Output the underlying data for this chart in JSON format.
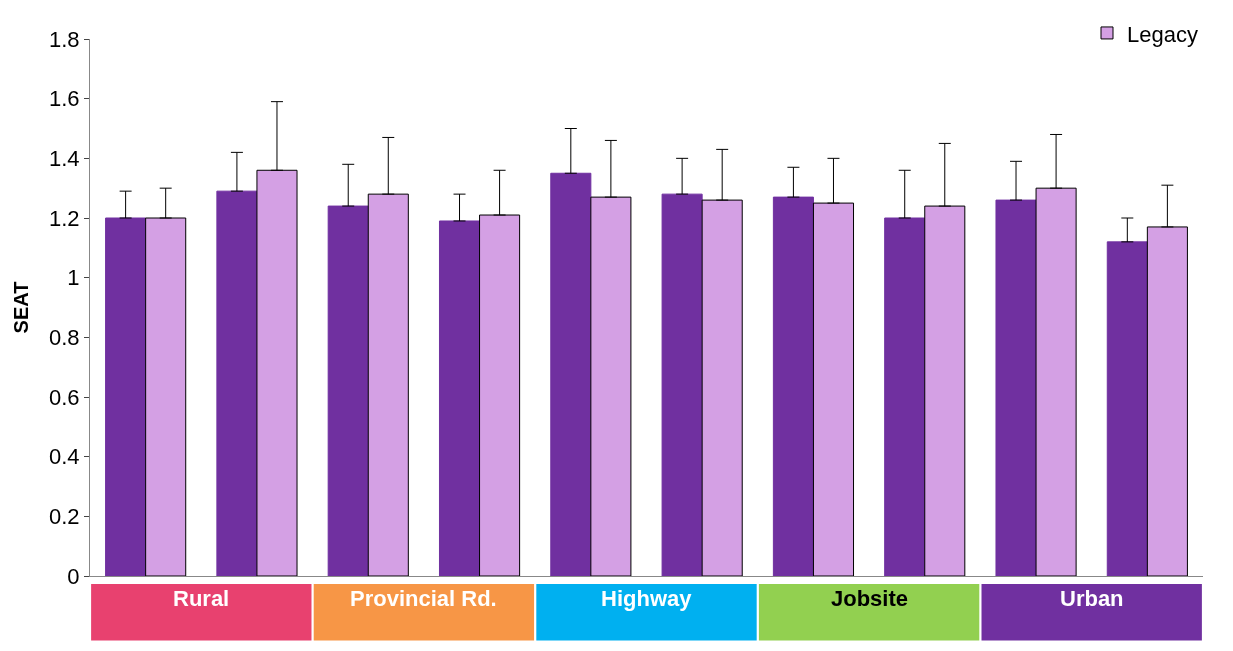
{
  "chart_data": {
    "type": "bar",
    "ylabel": "SEAT",
    "categories": [
      null,
      null,
      null,
      null,
      null,
      null,
      null,
      null,
      null,
      null
    ],
    "series": [
      {
        "color": "#7030a0",
        "values": [
          1.2,
          1.29,
          1.24,
          1.19,
          1.35,
          1.28,
          1.27,
          1.2,
          1.26,
          1.12
        ],
        "errors": [
          [
            1.2,
            1.29
          ],
          [
            1.29,
            1.42
          ],
          [
            1.24,
            1.38
          ],
          [
            1.19,
            1.28
          ],
          [
            1.35,
            1.5
          ],
          [
            1.28,
            1.4
          ],
          [
            1.27,
            1.37
          ],
          [
            1.2,
            1.36
          ],
          [
            1.26,
            1.39
          ],
          [
            1.12,
            1.2
          ]
        ]
      },
      {
        "name": "Legacy",
        "color": "#d4a0e4",
        "values": [
          1.2,
          1.36,
          1.28,
          1.21,
          1.27,
          1.26,
          1.25,
          1.24,
          1.3,
          1.17
        ],
        "errors": [
          [
            1.2,
            1.3
          ],
          [
            1.36,
            1.59
          ],
          [
            1.28,
            1.47
          ],
          [
            1.21,
            1.36
          ],
          [
            1.27,
            1.46
          ],
          [
            1.26,
            1.43
          ],
          [
            1.25,
            1.4
          ],
          [
            1.24,
            1.45
          ],
          [
            1.3,
            1.48
          ],
          [
            1.17,
            1.31
          ]
        ]
      }
    ],
    "annotations": [
      "Rural",
      "Provincial Rd.",
      "Highway",
      "Jobsite",
      "Urban"
    ],
    "ylim": [
      0,
      1.8
    ],
    "yticks": [
      0,
      0.2,
      0.4,
      0.6,
      0.8,
      1,
      1.2,
      1.4,
      1.6,
      1.8
    ],
    "legend": "top right"
  }
}
